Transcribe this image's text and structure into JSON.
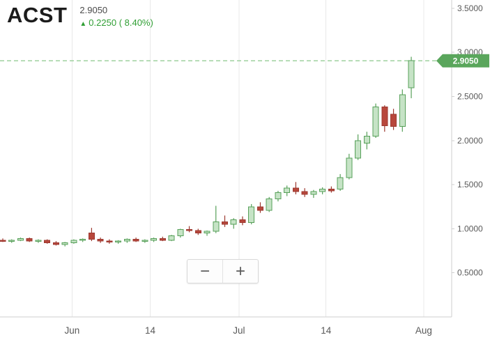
{
  "header": {
    "symbol": "ACST",
    "price": "2.9050",
    "arrow": "▲",
    "change": "0.2250",
    "change_pct": "( 8.40%)"
  },
  "controls": {
    "zoom_out": "−",
    "zoom_in": "+"
  },
  "colors": {
    "up_fill": "#c6e3c6",
    "up_border": "#57a059",
    "down_fill": "#b8473c",
    "down_border": "#9c382f",
    "dashed_line": "#8cc98c",
    "tag_bg": "#5aa65c",
    "tag_text": "#ffffff",
    "grid": "#e9e9e9",
    "axis": "#cfcfcf",
    "axis_label": "#595959",
    "change_green": "#2f9e33",
    "symbol_color": "#1c1c1c",
    "price_color": "#4a4a4a"
  },
  "chart_data": {
    "type": "candlestick",
    "symbol": "ACST",
    "last_price_line": {
      "value": 2.905,
      "label": "2.9050"
    },
    "y_axis": {
      "range": [
        0,
        3.594
      ],
      "ticks": [
        {
          "label": "0.5000",
          "value": 0.5
        },
        {
          "label": "1.0000",
          "value": 1.0
        },
        {
          "label": "1.5000",
          "value": 1.5
        },
        {
          "label": "2.0000",
          "value": 2.0
        },
        {
          "label": "2.5000",
          "value": 2.5
        },
        {
          "label": "3.0000",
          "value": 3.0
        },
        {
          "label": "3.5000",
          "value": 3.5
        }
      ]
    },
    "x_axis": {
      "ticks": [
        {
          "label": "Jun",
          "index": 7.8
        },
        {
          "label": "14",
          "index": 16.6
        },
        {
          "label": "Jul",
          "index": 26.6
        },
        {
          "label": "14",
          "index": 36.4
        },
        {
          "label": "Aug",
          "index": 47.4
        }
      ]
    },
    "candles": [
      [
        0.87,
        0.89,
        0.85,
        0.86
      ],
      [
        0.86,
        0.88,
        0.84,
        0.87
      ],
      [
        0.87,
        0.9,
        0.86,
        0.89
      ],
      [
        0.89,
        0.9,
        0.85,
        0.86
      ],
      [
        0.86,
        0.88,
        0.84,
        0.87
      ],
      [
        0.87,
        0.88,
        0.83,
        0.84
      ],
      [
        0.84,
        0.86,
        0.81,
        0.82
      ],
      [
        0.82,
        0.85,
        0.8,
        0.84
      ],
      [
        0.84,
        0.88,
        0.83,
        0.87
      ],
      [
        0.87,
        0.89,
        0.85,
        0.88
      ],
      [
        0.95,
        1.01,
        0.86,
        0.88
      ],
      [
        0.88,
        0.9,
        0.84,
        0.86
      ],
      [
        0.86,
        0.88,
        0.83,
        0.85
      ],
      [
        0.85,
        0.87,
        0.83,
        0.86
      ],
      [
        0.86,
        0.89,
        0.84,
        0.88
      ],
      [
        0.88,
        0.9,
        0.85,
        0.86
      ],
      [
        0.86,
        0.88,
        0.84,
        0.87
      ],
      [
        0.87,
        0.9,
        0.85,
        0.89
      ],
      [
        0.89,
        0.91,
        0.86,
        0.87
      ],
      [
        0.87,
        0.93,
        0.86,
        0.92
      ],
      [
        0.92,
        1.0,
        0.9,
        0.99
      ],
      [
        0.99,
        1.03,
        0.96,
        0.98
      ],
      [
        0.98,
        1.0,
        0.93,
        0.95
      ],
      [
        0.95,
        0.98,
        0.92,
        0.97
      ],
      [
        0.97,
        1.26,
        0.95,
        1.08
      ],
      [
        1.08,
        1.15,
        1.02,
        1.05
      ],
      [
        1.05,
        1.12,
        1.0,
        1.1
      ],
      [
        1.1,
        1.14,
        1.04,
        1.07
      ],
      [
        1.07,
        1.28,
        1.05,
        1.25
      ],
      [
        1.25,
        1.3,
        1.18,
        1.21
      ],
      [
        1.21,
        1.36,
        1.19,
        1.34
      ],
      [
        1.34,
        1.43,
        1.31,
        1.41
      ],
      [
        1.41,
        1.49,
        1.37,
        1.46
      ],
      [
        1.46,
        1.53,
        1.39,
        1.42
      ],
      [
        1.42,
        1.46,
        1.36,
        1.39
      ],
      [
        1.39,
        1.44,
        1.35,
        1.42
      ],
      [
        1.42,
        1.47,
        1.39,
        1.45
      ],
      [
        1.45,
        1.48,
        1.41,
        1.43
      ],
      [
        1.45,
        1.62,
        1.43,
        1.58
      ],
      [
        1.58,
        1.85,
        1.56,
        1.8
      ],
      [
        1.8,
        2.07,
        1.78,
        2.0
      ],
      [
        1.97,
        2.1,
        1.9,
        2.05
      ],
      [
        2.05,
        2.42,
        2.03,
        2.38
      ],
      [
        2.38,
        2.4,
        2.1,
        2.17
      ],
      [
        2.3,
        2.36,
        2.12,
        2.16
      ],
      [
        2.16,
        2.58,
        2.1,
        2.52
      ],
      [
        2.6,
        2.95,
        2.48,
        2.905
      ]
    ]
  }
}
